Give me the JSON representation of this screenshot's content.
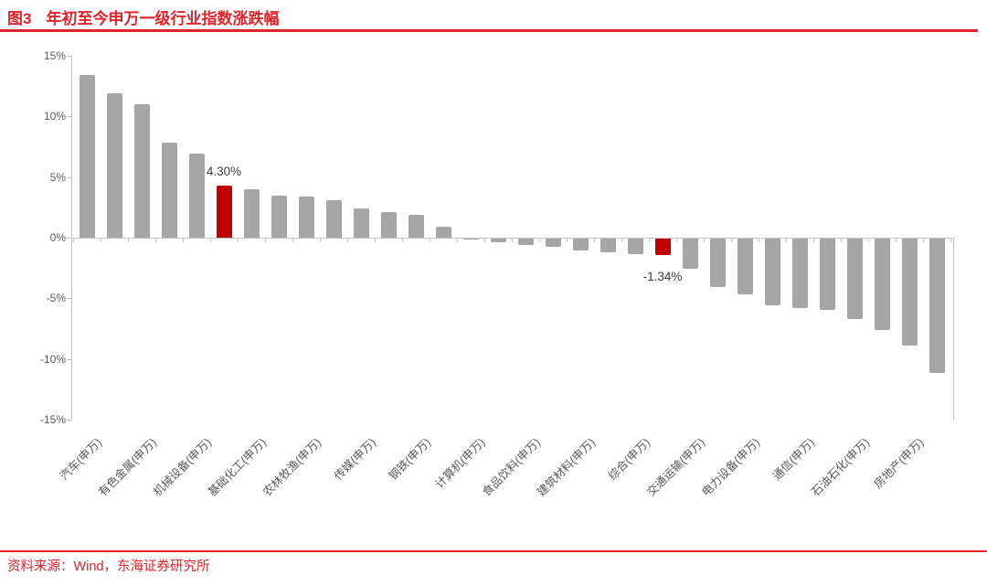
{
  "header": {
    "figure_label": "图3",
    "title": "年初至今申万一级行业指数涨跌幅"
  },
  "footer": {
    "source": "资料来源：Wind，东海证券研究所"
  },
  "colors": {
    "accent_red": "#e2232a",
    "bar_gray": "#a6a6a6",
    "bar_highlight_red": "#c00000",
    "axis_text_gray": "#595959",
    "annotation_gray": "#3f3f3f"
  },
  "chart_data": {
    "type": "bar",
    "title": "年初至今申万一级行业指数涨跌幅",
    "xlabel": "",
    "ylabel": "",
    "ylim": [
      -15,
      15
    ],
    "grid": false,
    "legend": false,
    "y_tick_labels": [
      "15%",
      "10%",
      "5%",
      "0%",
      "-5%",
      "-10%",
      "-15%"
    ],
    "y_tick_values": [
      15,
      10,
      5,
      0,
      -5,
      -10,
      -15
    ],
    "x_label_interval": 2,
    "categories": [
      "汽车(申万)",
      "",
      "有色金属(申万)",
      "",
      "机械设备(申万)",
      "",
      "基础化工(申万)",
      "",
      "农林牧渔(申万)",
      "",
      "传媒(申万)",
      "",
      "钢铁(申万)",
      "",
      "计算机(申万)",
      "",
      "食品饮料(申万)",
      "",
      "建筑材料(申万)",
      "",
      "综合(申万)",
      "",
      "交通运输(申万)",
      "",
      "电力设备(申万)",
      "",
      "通信(申万)",
      "",
      "石油石化(申万)",
      "",
      "房地产(申万)",
      ""
    ],
    "values": [
      13.4,
      11.9,
      11.0,
      7.8,
      6.9,
      4.3,
      4.0,
      3.5,
      3.4,
      3.1,
      2.4,
      2.1,
      1.9,
      0.9,
      -0.1,
      -0.3,
      -0.55,
      -0.65,
      -0.95,
      -1.1,
      -1.25,
      -1.34,
      -2.45,
      -4.0,
      -4.6,
      -5.5,
      -5.7,
      -5.9,
      -6.6,
      -7.5,
      -8.8,
      -11.1
    ],
    "highlight_indices": [
      5,
      21
    ],
    "annotations": [
      {
        "bar_index": 5,
        "text": "4.30%",
        "placement": "above"
      },
      {
        "bar_index": 21,
        "text": "-1.34%",
        "placement": "below"
      }
    ]
  }
}
